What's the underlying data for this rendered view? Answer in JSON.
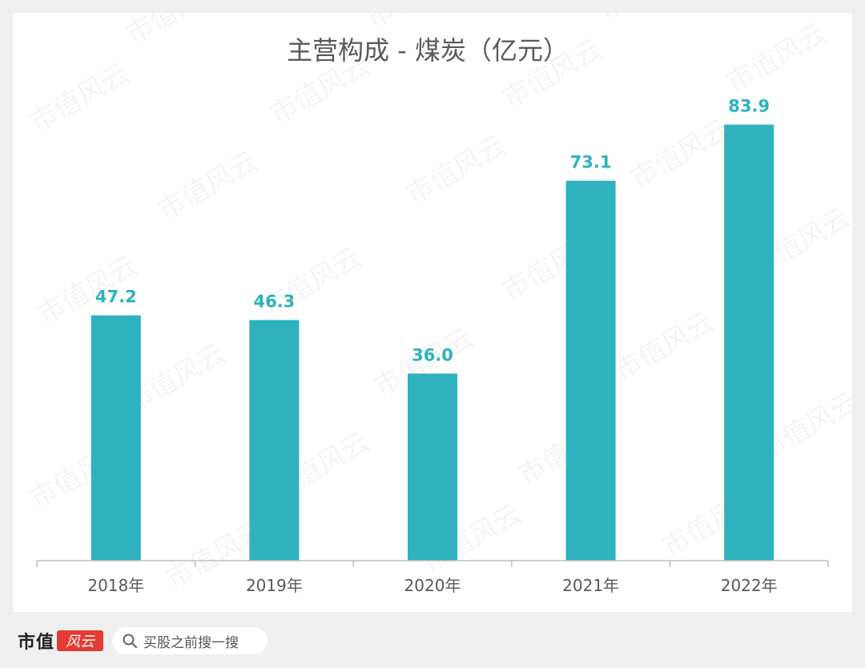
{
  "chart_data": {
    "type": "bar",
    "title": "主营构成 - 煤炭（亿元）",
    "categories": [
      "2018年",
      "2019年",
      "2020年",
      "2021年",
      "2022年"
    ],
    "values": [
      47.2,
      46.3,
      36.0,
      73.1,
      83.9
    ],
    "value_labels": [
      "47.2",
      "46.3",
      "36.0",
      "73.1",
      "83.9"
    ],
    "ylim": [
      0,
      90
    ],
    "grid": false,
    "legend": "none",
    "colors": {
      "bar": "#2eb2bf",
      "label": "#2eb2bf",
      "axis": "#bfbfbf",
      "text": "#595959"
    }
  },
  "watermark": "市值风云",
  "footer": {
    "brand_text": "市值",
    "brand_box_text": "风云",
    "search_label": "买股之前搜一搜",
    "search_icon": "search-icon"
  }
}
